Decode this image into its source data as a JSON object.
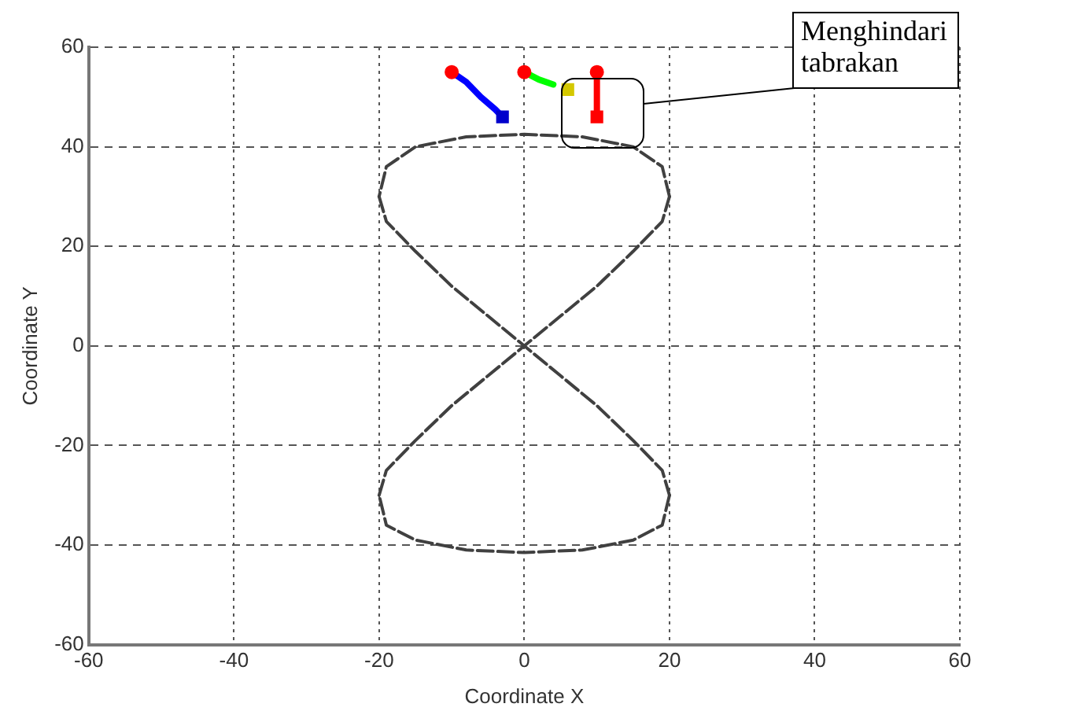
{
  "chart_data": {
    "type": "line",
    "xlabel": "Coordinate X",
    "ylabel": "Coordinate Y",
    "xlim": [
      -60,
      60
    ],
    "xticks": [
      -60,
      -40,
      -20,
      0,
      20,
      40,
      60
    ],
    "ylim": [
      -60,
      60
    ],
    "yticks": [
      -60,
      -40,
      -20,
      0,
      20,
      40,
      60
    ],
    "grid": true,
    "legend": false,
    "annotations": [
      "Menghindari tabrakan"
    ],
    "series": [
      {
        "color": "#404040",
        "line_style": "dashed",
        "marker": "none",
        "x": [
          -20,
          -19,
          -15,
          -10,
          -5,
          0,
          5,
          10,
          15,
          19,
          20
        ],
        "values": [
          30,
          25,
          19,
          12,
          6,
          0,
          -6,
          -12,
          -19,
          -25,
          -30
        ]
      },
      {
        "color": "#404040",
        "line_style": "dashed",
        "marker": "none",
        "x": [
          20,
          19,
          15,
          8,
          0,
          -8,
          -15,
          -19,
          -20
        ],
        "values": [
          -30,
          -36,
          -39,
          -41,
          -41.5,
          -41,
          -39,
          -36,
          -30
        ]
      },
      {
        "color": "#404040",
        "line_style": "dashed",
        "marker": "none",
        "x": [
          -20,
          -19,
          -15,
          -10,
          -5,
          0,
          5,
          10,
          15,
          19,
          20
        ],
        "values": [
          -30,
          -25,
          -19,
          -12,
          -6,
          0,
          6,
          12,
          19,
          25,
          30
        ]
      },
      {
        "color": "#404040",
        "line_style": "dashed",
        "marker": "none",
        "x": [
          20,
          19,
          15,
          8,
          0,
          -8,
          -15,
          -19,
          -20
        ],
        "values": [
          30,
          36,
          40,
          42,
          42.5,
          42,
          40,
          36,
          30
        ]
      },
      {
        "color": "#0000ff",
        "line_style": "solid",
        "marker": "none",
        "x": [
          -10,
          -8,
          -6,
          -4,
          -3
        ],
        "values": [
          55,
          53,
          50,
          47.5,
          46
        ]
      },
      {
        "color": "#00ff00",
        "line_style": "solid",
        "marker": "none",
        "x": [
          0,
          2,
          4
        ],
        "values": [
          55,
          53.5,
          52.5
        ]
      },
      {
        "color": "#ff0000",
        "line_style": "solid",
        "marker": "none",
        "x": [
          10,
          10,
          10
        ],
        "values": [
          55,
          51,
          47
        ]
      },
      {
        "type": "scatter",
        "color": "#ff0000",
        "marker": "circle",
        "x": [
          -10,
          0,
          10
        ],
        "values": [
          55,
          55,
          55
        ]
      },
      {
        "type": "scatter",
        "color": "#0000cc",
        "marker": "square",
        "x": [
          -3
        ],
        "values": [
          46
        ]
      },
      {
        "type": "scatter",
        "color": "#d4c800",
        "marker": "square",
        "x": [
          6
        ],
        "values": [
          51.5
        ]
      },
      {
        "type": "scatter",
        "color": "#ff0000",
        "marker": "square",
        "x": [
          10
        ],
        "values": [
          46
        ]
      }
    ]
  }
}
